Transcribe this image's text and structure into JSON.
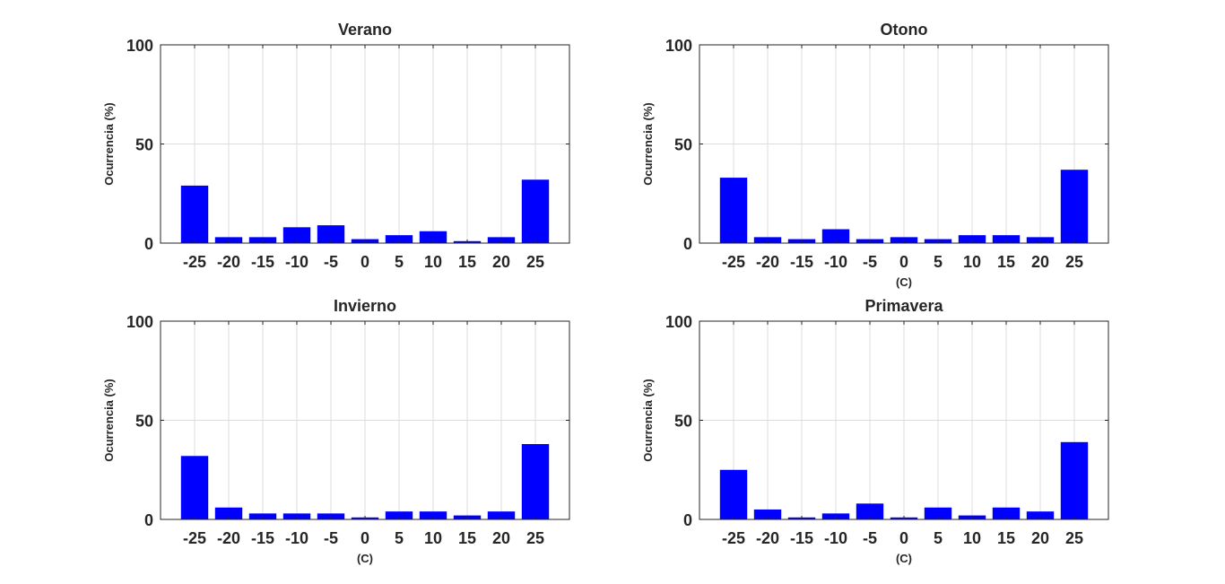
{
  "chart_data": [
    {
      "type": "bar",
      "title": "Verano",
      "categories": [
        "-25",
        "-20",
        "-15",
        "-10",
        "-5",
        "0",
        "5",
        "10",
        "15",
        "20",
        "25"
      ],
      "values": [
        29,
        3,
        3,
        8,
        9,
        2,
        4,
        6,
        1,
        3,
        32
      ],
      "ylabel": "Ocurrencia (%)",
      "xlabel": "",
      "ylim": [
        0,
        100
      ],
      "yticks": [
        "0",
        "50",
        "100"
      ],
      "grid": true
    },
    {
      "type": "bar",
      "title": "Otono",
      "categories": [
        "-25",
        "-20",
        "-15",
        "-10",
        "-5",
        "0",
        "5",
        "10",
        "15",
        "20",
        "25"
      ],
      "values": [
        33,
        3,
        2,
        7,
        2,
        3,
        2,
        4,
        4,
        3,
        37
      ],
      "ylabel": "Ocurrencia (%)",
      "xlabel": "(C)",
      "ylim": [
        0,
        100
      ],
      "yticks": [
        "0",
        "50",
        "100"
      ],
      "grid": true
    },
    {
      "type": "bar",
      "title": "Invierno",
      "categories": [
        "-25",
        "-20",
        "-15",
        "-10",
        "-5",
        "0",
        "5",
        "10",
        "15",
        "20",
        "25"
      ],
      "values": [
        32,
        6,
        3,
        3,
        3,
        1,
        4,
        4,
        2,
        4,
        38
      ],
      "ylabel": "Ocurrencia (%)",
      "xlabel": "(C)",
      "ylim": [
        0,
        100
      ],
      "yticks": [
        "0",
        "50",
        "100"
      ],
      "grid": true
    },
    {
      "type": "bar",
      "title": "Primavera",
      "categories": [
        "-25",
        "-20",
        "-15",
        "-10",
        "-5",
        "0",
        "5",
        "10",
        "15",
        "20",
        "25"
      ],
      "values": [
        25,
        5,
        1,
        3,
        8,
        1,
        6,
        2,
        6,
        4,
        39
      ],
      "ylabel": "Ocurrencia (%)",
      "xlabel": "(C)",
      "ylim": [
        0,
        100
      ],
      "yticks": [
        "0",
        "50",
        "100"
      ],
      "grid": true
    }
  ],
  "colors": {
    "bar": "#0000ff",
    "axis": "#262626",
    "grid": "#dcdcdc"
  }
}
